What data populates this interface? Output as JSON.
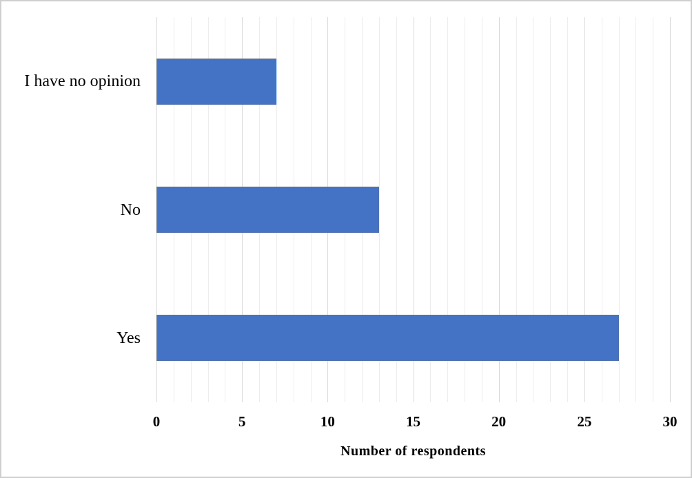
{
  "chart_data": {
    "type": "bar",
    "orientation": "horizontal",
    "categories": [
      "I have no opinion",
      "No",
      "Yes"
    ],
    "values": [
      7,
      13,
      27
    ],
    "category_order": "top-to-bottom",
    "title": "",
    "xlabel": "Number of respondents",
    "ylabel": "",
    "xlim": [
      0,
      30
    ],
    "x_ticks": [
      0,
      5,
      10,
      15,
      20,
      25,
      30
    ],
    "minor_grid_step": 1,
    "major_grid_step": 5,
    "grid": "vertical minor and major gridlines, no axis lines",
    "legend": "none",
    "colors": {
      "bar": "#4472C4",
      "minor_grid": "#EDEDED",
      "major_grid": "#D9D9D9",
      "text": "#000000",
      "background": "#FFFFFF",
      "canvas_border": "#CFCFCF"
    }
  }
}
